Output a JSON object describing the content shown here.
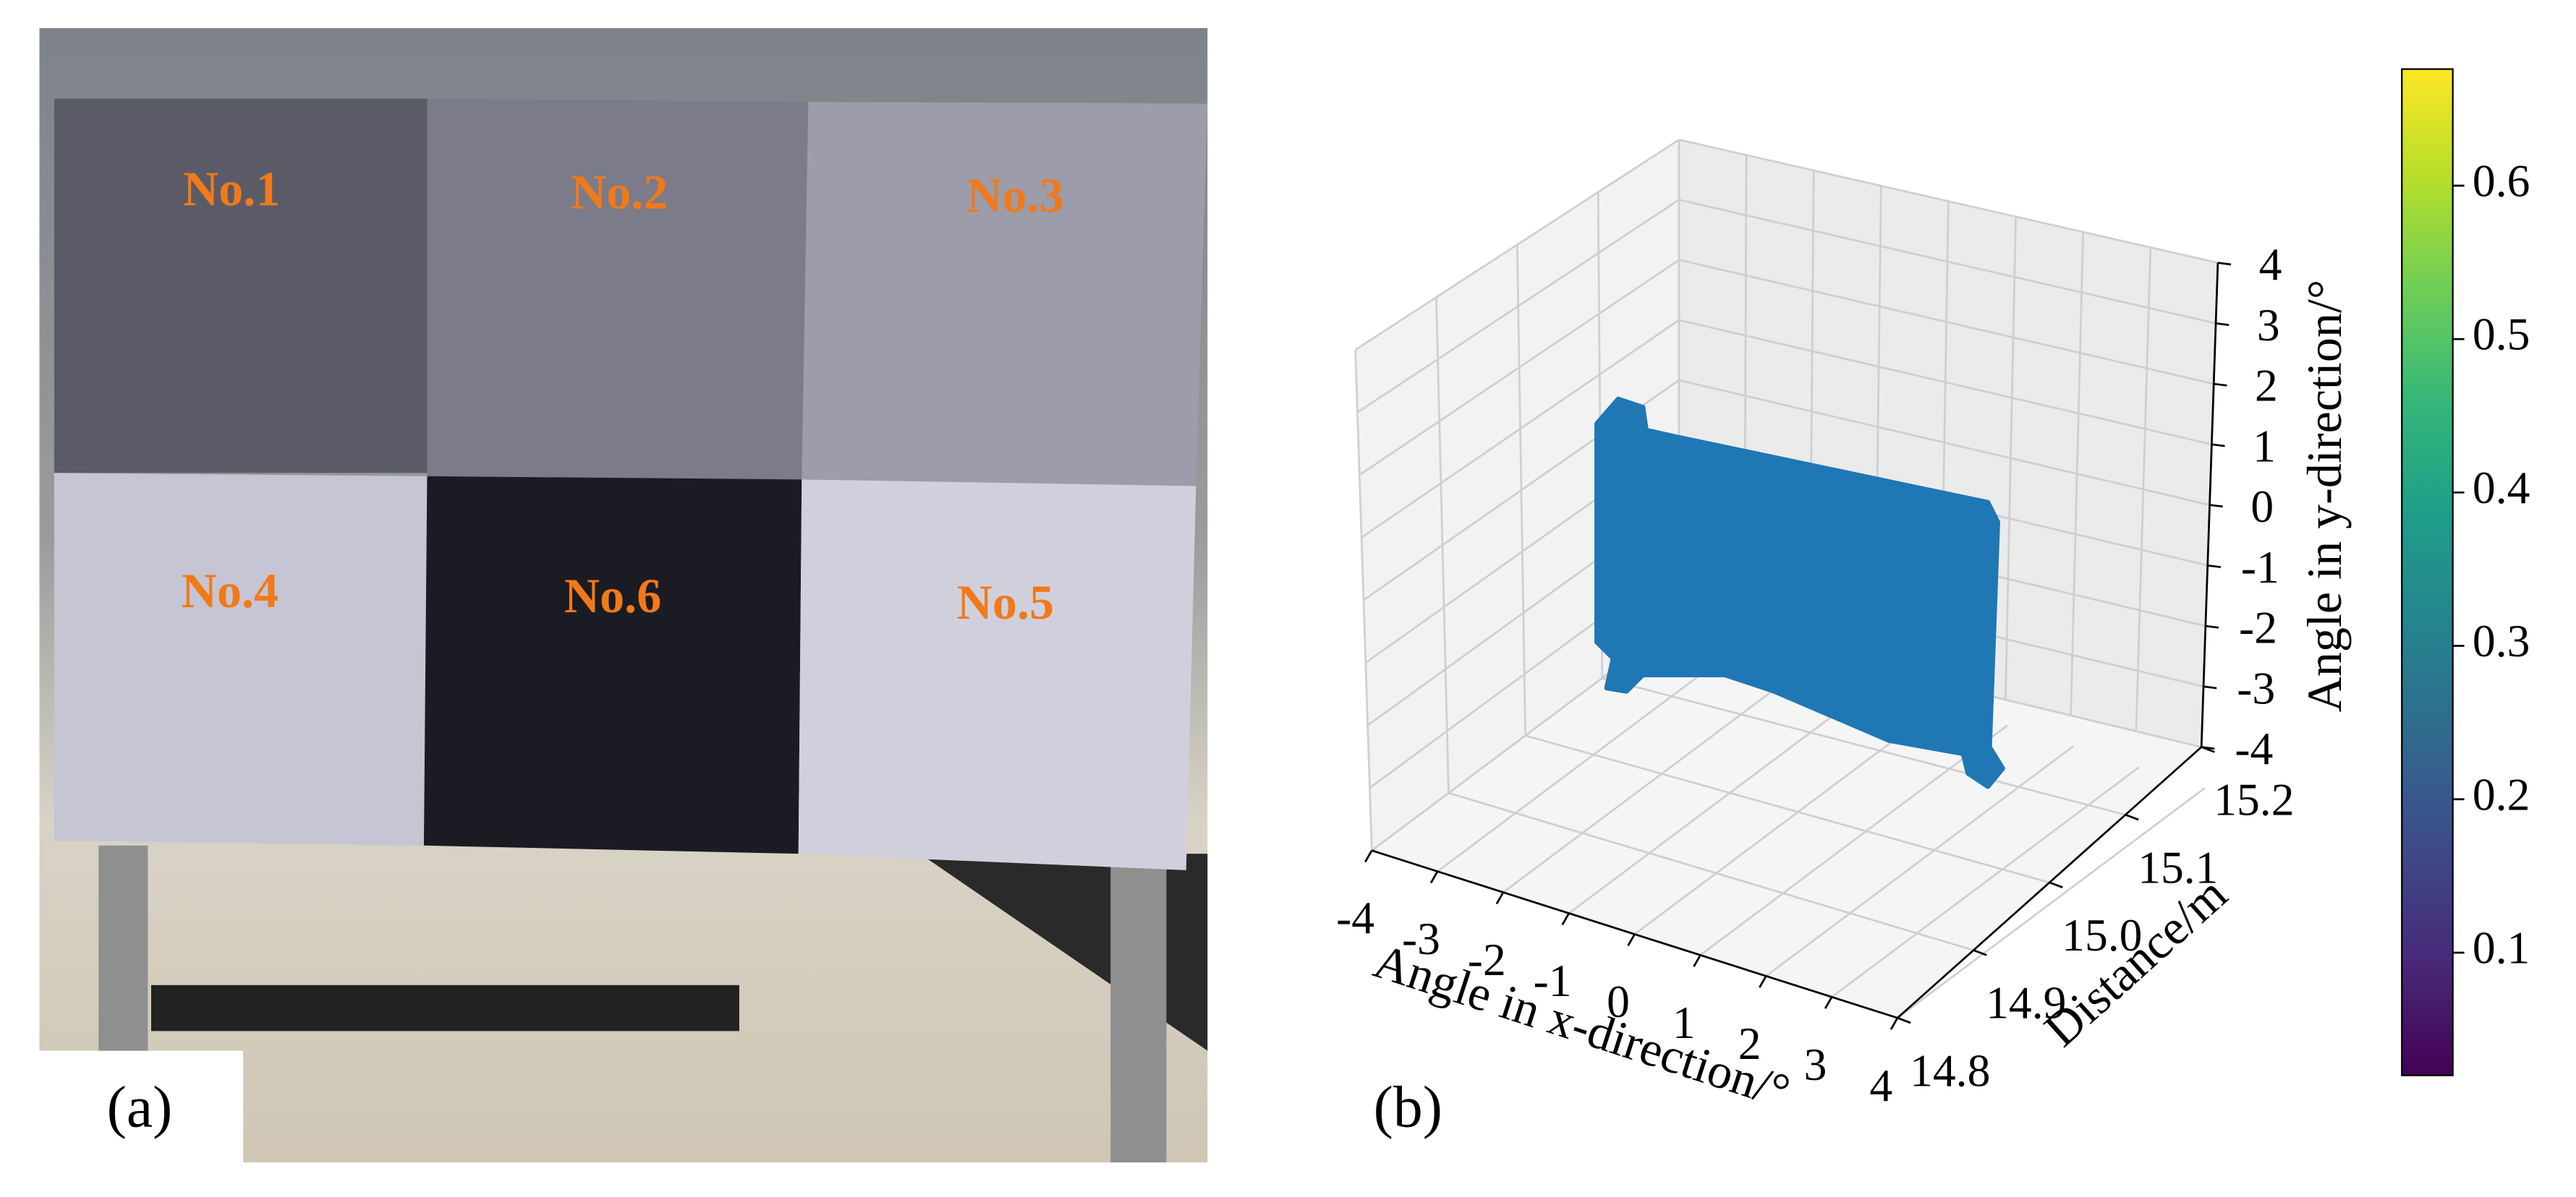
{
  "panel_a": {
    "label": "(a)",
    "patches": [
      "No.1",
      "No.2",
      "No.3",
      "No.4",
      "No.6",
      "No.5"
    ]
  },
  "chart_data": {
    "type": "scatter3d",
    "label": "(b)",
    "xlabel": "Angle in x-direction/°",
    "ylabel": "Distance/m",
    "zlabel": "Angle in y-direction/°",
    "xlim": [
      -4,
      4
    ],
    "xticks": [
      -4,
      -3,
      -2,
      -1,
      0,
      1,
      2,
      3,
      4
    ],
    "ylim": [
      14.8,
      15.2
    ],
    "yticks": [
      14.8,
      14.9,
      {
        "value": 15.0,
        "label": "15.0"
      },
      15.1,
      15.2
    ],
    "zlim": [
      -4,
      4
    ],
    "zticks": [
      -4,
      -3,
      -2,
      -1,
      0,
      1,
      2,
      3,
      4
    ],
    "color": "#1f77b4",
    "grid": true,
    "clim": [
      0.02,
      0.676
    ],
    "cticks": [
      0.1,
      0.2,
      0.3,
      0.4,
      0.5,
      0.6
    ]
  }
}
